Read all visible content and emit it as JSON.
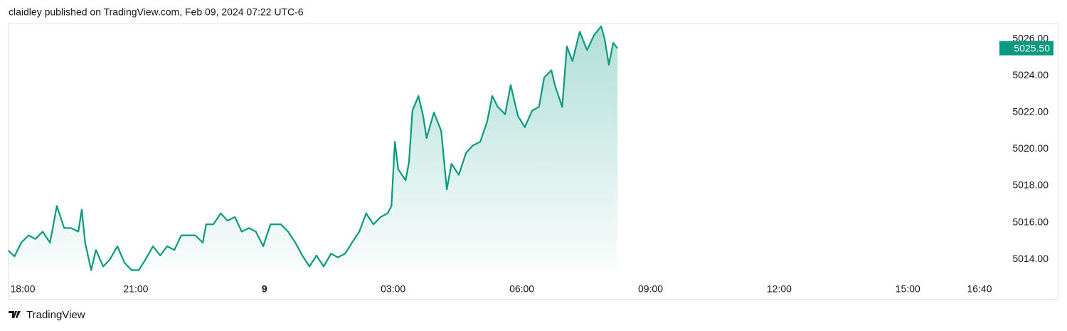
{
  "header": "claidley published on TradingView.com, Feb 09, 2024 07:22 UTC-6",
  "footer": "TradingView",
  "chart_data": {
    "type": "area",
    "color": "#089981",
    "x": [
      0.03,
      0.17,
      0.33,
      0.5,
      0.66,
      0.83,
      1.0,
      1.16,
      1.33,
      1.49,
      1.66,
      1.74,
      1.82,
      1.96,
      2.07,
      2.24,
      2.4,
      2.57,
      2.74,
      2.9,
      3.07,
      3.23,
      3.4,
      3.57,
      3.73,
      3.9,
      4.06,
      4.23,
      4.39,
      4.56,
      4.64,
      4.81,
      4.98,
      5.14,
      5.31,
      5.47,
      5.64,
      5.8,
      5.97,
      6.14,
      6.38,
      6.55,
      6.72,
      6.88,
      7.05,
      7.21,
      7.38,
      7.55,
      7.71,
      7.88,
      8.04,
      8.21,
      8.37,
      8.54,
      8.71,
      8.87,
      8.96,
      9.04,
      9.12,
      9.29,
      9.37,
      9.45,
      9.59,
      9.7,
      9.78,
      9.95,
      10.12,
      10.25,
      10.36,
      10.53,
      10.7,
      10.86,
      11.03,
      11.19,
      11.31,
      11.44,
      11.61,
      11.74,
      11.91,
      12.07,
      12.24,
      12.4,
      12.52,
      12.69,
      12.77,
      12.94,
      13.05,
      13.18,
      13.35,
      13.52,
      13.68,
      13.85,
      13.93,
      14.03,
      14.13,
      14.23
    ],
    "values": [
      5014.47,
      5014.15,
      5014.9,
      5015.3,
      5015.1,
      5015.5,
      5014.9,
      5016.9,
      5015.7,
      5015.7,
      5015.5,
      5016.7,
      5014.9,
      5013.4,
      5014.5,
      5013.6,
      5014.0,
      5014.7,
      5013.8,
      5013.4,
      5013.4,
      5014.0,
      5014.7,
      5014.2,
      5014.7,
      5014.5,
      5015.3,
      5015.3,
      5015.3,
      5014.9,
      5015.9,
      5015.9,
      5016.5,
      5016.1,
      5016.3,
      5015.5,
      5015.7,
      5015.5,
      5014.7,
      5015.9,
      5015.9,
      5015.5,
      5014.9,
      5014.2,
      5013.6,
      5014.2,
      5013.6,
      5014.3,
      5014.1,
      5014.3,
      5014.9,
      5015.5,
      5016.5,
      5015.9,
      5016.3,
      5016.5,
      5016.9,
      5020.4,
      5018.9,
      5018.3,
      5019.3,
      5022.1,
      5022.9,
      5021.8,
      5020.6,
      5022.0,
      5021.0,
      5017.8,
      5019.2,
      5018.6,
      5019.8,
      5020.2,
      5020.4,
      5021.5,
      5022.9,
      5022.3,
      5021.9,
      5023.5,
      5021.8,
      5021.2,
      5022.1,
      5022.3,
      5023.9,
      5024.3,
      5023.5,
      5022.3,
      5025.6,
      5024.8,
      5026.4,
      5025.4,
      5026.2,
      5026.7,
      5026.0,
      5024.6,
      5025.8,
      5025.5
    ],
    "price_tag": {
      "value": 5025.5,
      "label": "5025.50"
    },
    "xlim": [
      0,
      23.1
    ],
    "ylim": [
      5012.8,
      5026.85
    ],
    "xticks": [
      {
        "value": 0,
        "label": "18:00"
      },
      {
        "value": 3,
        "label": "21:00"
      },
      {
        "value": 6,
        "label": "9"
      },
      {
        "value": 9,
        "label": "03:00"
      },
      {
        "value": 12,
        "label": "06:00"
      },
      {
        "value": 15,
        "label": "09:00"
      },
      {
        "value": 18,
        "label": "12:00"
      },
      {
        "value": 21,
        "label": "15:00"
      },
      {
        "value": 22.67,
        "label": "16:40"
      }
    ],
    "yticks": [
      {
        "value": 5014,
        "label": "5014.00"
      },
      {
        "value": 5016,
        "label": "5016.00"
      },
      {
        "value": 5018,
        "label": "5018.00"
      },
      {
        "value": 5020,
        "label": "5020.00"
      },
      {
        "value": 5022,
        "label": "5022.00"
      },
      {
        "value": 5024,
        "label": "5024.00"
      },
      {
        "value": 5026,
        "label": "5026.00"
      }
    ]
  }
}
